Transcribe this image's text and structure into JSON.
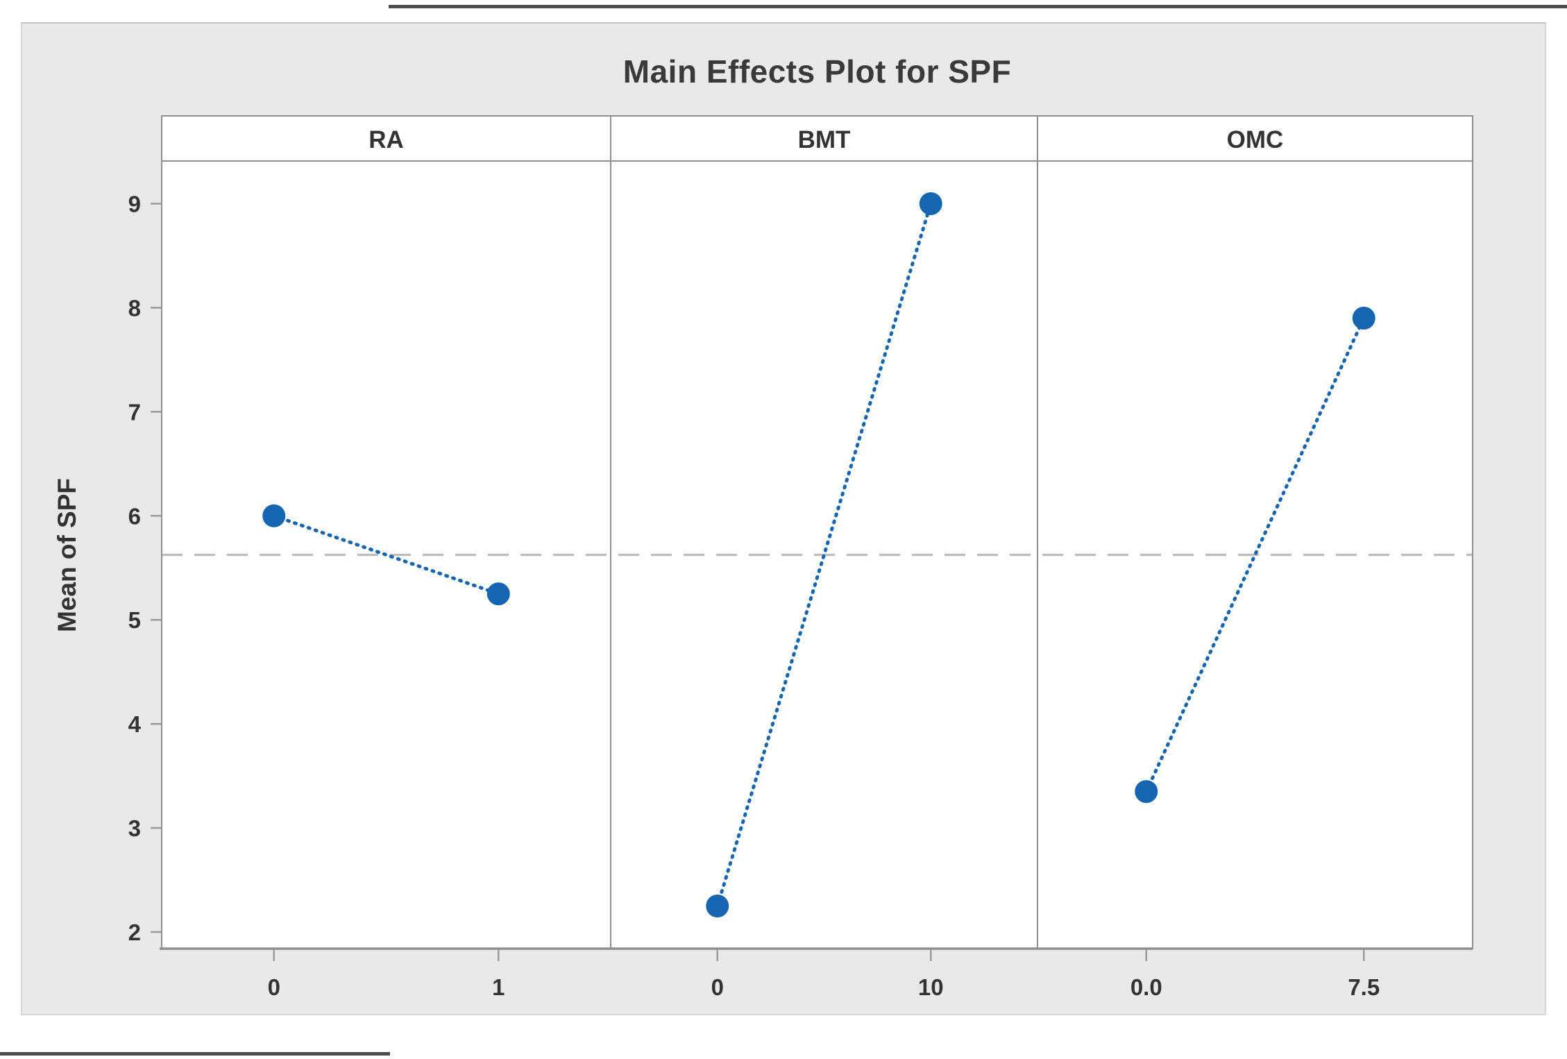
{
  "chart_data": {
    "type": "line",
    "title": "Main Effects Plot for SPF",
    "ylabel": "Mean of SPF",
    "xlabel": "",
    "ylim": [
      1.84,
      9.41
    ],
    "yticks": [
      2,
      3,
      4,
      5,
      6,
      7,
      8,
      9
    ],
    "grid": "off",
    "legend": "none",
    "reference_line": 5.625,
    "reference_line_style": "dashed",
    "series_style": "dotted-line-with-markers",
    "panels": [
      {
        "label": "RA",
        "levels": [
          "0",
          "1"
        ],
        "means": [
          6.0,
          5.25
        ]
      },
      {
        "label": "BMT",
        "levels": [
          "0",
          "10"
        ],
        "means": [
          2.25,
          9.0
        ]
      },
      {
        "label": "OMC",
        "levels": [
          "0.0",
          "7.5"
        ],
        "means": [
          3.35,
          7.9
        ]
      }
    ]
  },
  "colors": {
    "series_blue": "#1565b0",
    "reference_gray": "#bdbdbd",
    "axis_gray": "#8e8e8e",
    "tick_gray": "#9a9a9a",
    "text_dark": "#333333",
    "title_dark": "#3a3a3a",
    "figure_bg": "#e9e9e9",
    "panel_bg": "#ffffff",
    "page_rule": "#4b4b4b"
  }
}
